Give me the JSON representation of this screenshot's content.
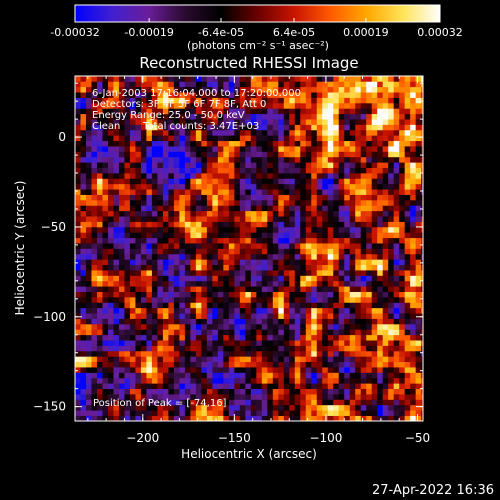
{
  "chart_data": {
    "type": "heatmap",
    "title": "Reconstructed RHESSI Image",
    "xlabel": "Heliocentric X (arcsec)",
    "ylabel": "Heliocentric Y (arcsec)",
    "xlim": [
      -237,
      -47
    ],
    "ylim": [
      -158,
      34
    ],
    "x_ticks": [
      -200,
      -150,
      -100,
      -50
    ],
    "y_ticks": [
      -150,
      -100,
      -50,
      0
    ],
    "x_tick_labels": [
      "−200",
      "−150",
      "−100",
      "−50"
    ],
    "y_tick_labels": [
      "−150",
      "−100",
      "−50",
      "0"
    ],
    "colorbar": {
      "range": [
        -0.00032,
        0.00032
      ],
      "tick_labels": [
        "-0.00032",
        "-0.00019",
        "-6.4e-05",
        "6.4e-05",
        "0.00019",
        "0.00032"
      ],
      "units_label": "(photons cm⁻² s⁻¹ asec⁻²)",
      "colormap": [
        "#0000ff",
        "#3f1fd0",
        "#6a1e9a",
        "#2a0b2f",
        "#000000",
        "#6a0000",
        "#c81400",
        "#ff5a00",
        "#ffa800",
        "#ffe45a",
        "#ffffff"
      ]
    },
    "annotations": {
      "time": "6-Jan-2003 17:16:04.000 to 17:20:00.000",
      "detectors": "Detectors: 3F 4F 5F 6F 7F 8F, Att 0",
      "energy": "Energy Range: 25.0 - 50.0 keV",
      "method": "Clean",
      "total_counts": "Total counts: 3.47E+03",
      "peak": "Position of Peak = [-74,16]"
    },
    "peak_position": [
      -74,
      16
    ],
    "peak_value": 0.00032,
    "value_stats": {
      "min": -0.00032,
      "max": 0.00032,
      "total_counts": 3470
    }
  },
  "footer": {
    "timestamp": "27-Apr-2022 16:36"
  }
}
